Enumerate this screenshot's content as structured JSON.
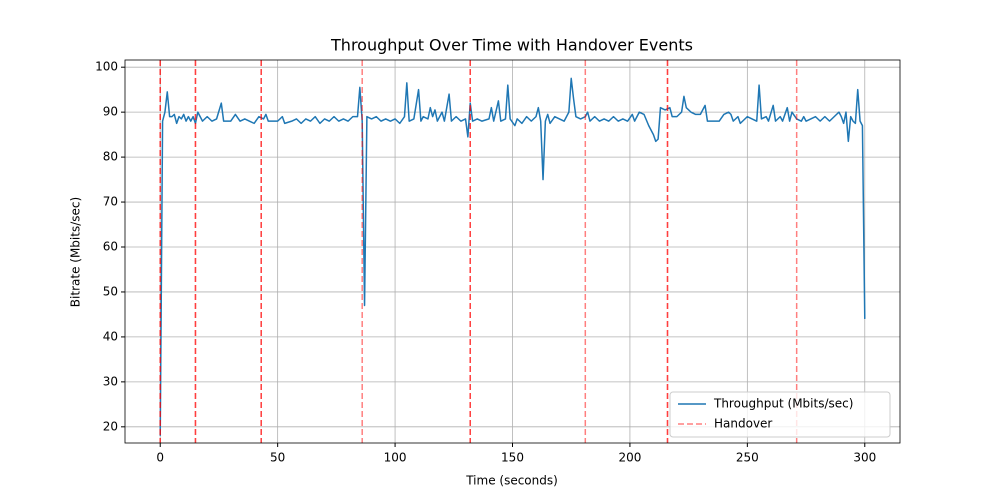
{
  "chart_data": {
    "type": "line",
    "title": "Throughput Over Time with Handover Events",
    "x_label": "Time (seconds)",
    "y_label": "Bitrate (Mbits/sec)",
    "x": [
      0,
      1,
      2,
      3,
      4,
      5,
      6,
      7,
      8,
      9,
      10,
      11,
      12,
      13,
      14,
      15,
      16,
      17,
      18,
      19,
      20,
      22,
      24,
      26,
      27,
      30,
      32,
      34,
      36,
      38,
      40,
      42,
      44,
      45,
      46,
      50,
      52,
      53,
      56,
      58,
      60,
      62,
      64,
      66,
      68,
      70,
      72,
      74,
      76,
      78,
      80,
      82,
      84,
      85,
      86,
      87,
      88,
      90,
      92,
      94,
      96,
      98,
      100,
      102,
      104,
      105,
      106,
      108,
      110,
      111,
      112,
      114,
      115,
      116,
      117,
      118,
      120,
      121,
      123,
      124,
      126,
      128,
      130,
      131,
      132,
      133,
      135,
      137,
      140,
      141,
      142,
      144,
      145,
      147,
      148,
      149,
      151,
      152,
      154,
      156,
      158,
      160,
      161,
      162,
      163,
      164,
      165,
      166,
      168,
      170,
      172,
      174,
      175,
      176,
      177,
      179,
      181,
      182,
      183,
      185,
      187,
      189,
      191,
      193,
      195,
      197,
      199,
      201,
      202,
      204,
      206,
      208,
      210,
      211,
      212,
      213,
      215,
      217,
      218,
      220,
      222,
      223,
      224,
      226,
      228,
      230,
      232,
      233,
      236,
      238,
      240,
      242,
      243,
      244,
      246,
      247,
      249,
      250,
      252,
      254,
      255,
      256,
      258,
      259,
      261,
      262,
      264,
      265,
      267,
      268,
      269,
      271,
      273,
      274,
      275,
      277,
      279,
      281,
      283,
      285,
      287,
      289,
      290,
      291,
      292,
      293,
      294,
      295,
      296,
      297,
      298,
      299,
      300
    ],
    "series": [
      {
        "name": "Throughput (Mbits/sec)",
        "color": "#1f77b4",
        "values": [
          18,
          88,
          90,
          94.5,
          89,
          89,
          89.5,
          87.5,
          89,
          88.5,
          89.5,
          88,
          89,
          88,
          89,
          87.5,
          90,
          89,
          88,
          88.5,
          89,
          88,
          88.5,
          92,
          88,
          88,
          89.5,
          88,
          88.5,
          88,
          87.5,
          89,
          88.5,
          89.5,
          88,
          88,
          89,
          87.5,
          88,
          88.5,
          87.5,
          88.5,
          88,
          89,
          87.5,
          88.5,
          88,
          89,
          88,
          88.5,
          88,
          89,
          89,
          95.5,
          88,
          47,
          89,
          88.5,
          89,
          88,
          88.5,
          88,
          88.5,
          87.5,
          89,
          96.5,
          88,
          88.5,
          95,
          88,
          89,
          88.5,
          91,
          89,
          90.5,
          88,
          90,
          88,
          94,
          88,
          89,
          88,
          88.5,
          84.5,
          92,
          88,
          88.5,
          88,
          88.5,
          91,
          88,
          92.5,
          88,
          88.5,
          96,
          88.5,
          87,
          88.5,
          87.5,
          89,
          88,
          89,
          91,
          88,
          75,
          88,
          89.5,
          87.5,
          89,
          88.5,
          88,
          90,
          97.5,
          93,
          89,
          88.5,
          89,
          90,
          88,
          89,
          88,
          88.5,
          88,
          89,
          88,
          88.5,
          88,
          89.5,
          88,
          90,
          89.5,
          87,
          85,
          83.5,
          84,
          91,
          90.5,
          91,
          89,
          89,
          90,
          93.5,
          91,
          90,
          89.5,
          89.5,
          91.5,
          88,
          88,
          88,
          89.5,
          90,
          89.5,
          88,
          89,
          87.5,
          88.5,
          89,
          88.5,
          88,
          96,
          88.5,
          89,
          88,
          91.5,
          88,
          89,
          88,
          91,
          88,
          90,
          88.5,
          88,
          89,
          88,
          88.5,
          89,
          88,
          89,
          88,
          89,
          90,
          89,
          87.5,
          90,
          83.5,
          89,
          88,
          87.5,
          95,
          88,
          87,
          44
        ]
      }
    ],
    "handovers": {
      "name": "Handover",
      "color": "#ff0000",
      "opacity": 0.5,
      "x": [
        0,
        0,
        15,
        15,
        43,
        43,
        86,
        132,
        132,
        181,
        216,
        216,
        271
      ]
    },
    "xlim": [
      -15,
      315
    ],
    "ylim": [
      16.4,
      101.6
    ],
    "xticks": [
      0,
      50,
      100,
      150,
      200,
      250,
      300
    ],
    "yticks": [
      20,
      30,
      40,
      50,
      60,
      70,
      80,
      90,
      100
    ],
    "grid": true,
    "legend": "lower right"
  }
}
